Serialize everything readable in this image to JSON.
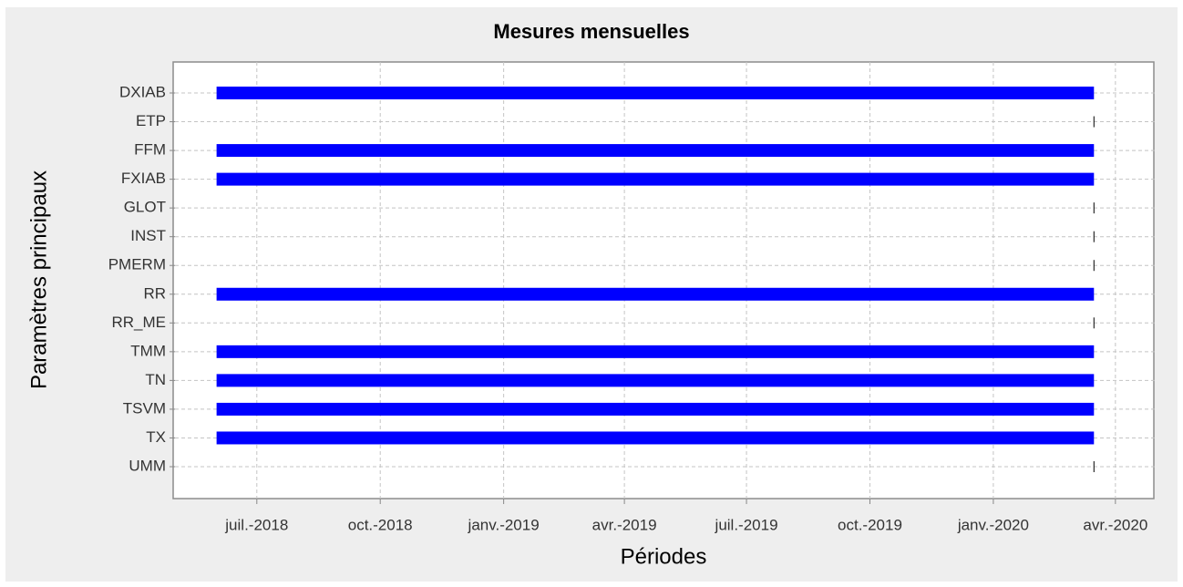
{
  "chart_data": {
    "type": "timeline",
    "title": "Mesures mensuelles",
    "xlabel": "Périodes",
    "ylabel": "Paramètres principaux",
    "categories": [
      "DXIAB",
      "ETP",
      "FFM",
      "FXIAB",
      "GLOT",
      "INST",
      "PMERM",
      "RR",
      "RR_ME",
      "TMM",
      "TN",
      "TSVM",
      "TX",
      "UMM"
    ],
    "start": [
      "2018-06",
      "2020-03",
      "2018-06",
      "2018-06",
      "2020-03",
      "2020-03",
      "2020-03",
      "2018-06",
      "2020-03",
      "2018-06",
      "2018-06",
      "2018-06",
      "2018-06",
      "2020-03"
    ],
    "end": [
      "2020-03",
      "2020-03",
      "2020-03",
      "2020-03",
      "2020-03",
      "2020-03",
      "2020-03",
      "2020-03",
      "2020-03",
      "2020-03",
      "2020-03",
      "2020-03",
      "2020-03",
      "2020-03"
    ],
    "color": "#0000ff",
    "xlim": [
      "2018-05",
      "2020-05"
    ],
    "xticks": [
      {
        "value": "2018-07",
        "label": "juil.-2018"
      },
      {
        "value": "2018-10",
        "label": "oct.-2018"
      },
      {
        "value": "2019-01",
        "label": "janv.-2019"
      },
      {
        "value": "2019-04",
        "label": "avr.-2019"
      },
      {
        "value": "2019-07",
        "label": "juil.-2019"
      },
      {
        "value": "2019-10",
        "label": "oct.-2019"
      },
      {
        "value": "2020-01",
        "label": "janv.-2020"
      },
      {
        "value": "2020-04",
        "label": "avr.-2020"
      }
    ],
    "grid": true
  }
}
